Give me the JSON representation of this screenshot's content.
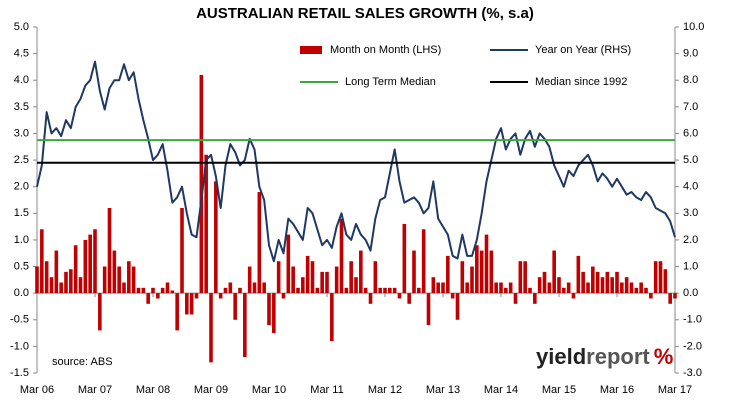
{
  "chart_data": {
    "type": "bar_line",
    "title": "AUSTRALIAN RETAIL SALES GROWTH (%, s.a)",
    "source": "source: ABS",
    "logo": [
      "yield",
      "report",
      "%"
    ],
    "categories": [
      "Mar 06",
      null,
      null,
      null,
      null,
      null,
      null,
      null,
      null,
      null,
      null,
      null,
      "Mar 07",
      null,
      null,
      null,
      null,
      null,
      null,
      null,
      null,
      null,
      null,
      null,
      "Mar 08",
      null,
      null,
      null,
      null,
      null,
      null,
      null,
      null,
      null,
      null,
      null,
      "Mar 09",
      null,
      null,
      null,
      null,
      null,
      null,
      null,
      null,
      null,
      null,
      null,
      "Mar 10",
      null,
      null,
      null,
      null,
      null,
      null,
      null,
      null,
      null,
      null,
      null,
      "Mar 11",
      null,
      null,
      null,
      null,
      null,
      null,
      null,
      null,
      null,
      null,
      null,
      "Mar 12",
      null,
      null,
      null,
      null,
      null,
      null,
      null,
      null,
      null,
      null,
      null,
      "Mar 13",
      null,
      null,
      null,
      null,
      null,
      null,
      null,
      null,
      null,
      null,
      null,
      "Mar 14",
      null,
      null,
      null,
      null,
      null,
      null,
      null,
      null,
      null,
      null,
      null,
      "Mar 15",
      null,
      null,
      null,
      null,
      null,
      null,
      null,
      null,
      null,
      null,
      null,
      "Mar 16",
      null,
      null,
      null,
      null,
      null,
      null,
      null,
      null,
      null,
      null,
      null,
      "Mar 17"
    ],
    "series": [
      {
        "name": "Month on Month (LHS)",
        "kind": "bar",
        "color": "#c00000",
        "values": [
          0.5,
          1.2,
          0.6,
          0.3,
          0.8,
          0.2,
          0.4,
          0.45,
          0.9,
          0.3,
          1.0,
          1.1,
          1.2,
          -0.7,
          0.5,
          1.6,
          0.8,
          0.5,
          0.2,
          0.6,
          0.5,
          0.1,
          0.1,
          -0.2,
          0.1,
          -0.1,
          0.1,
          0.2,
          0.05,
          -0.7,
          1.6,
          -0.4,
          -0.4,
          -0.1,
          4.1,
          2.6,
          -1.3,
          2.1,
          -0.1,
          0.1,
          0.2,
          -0.5,
          0.1,
          -1.2,
          0.5,
          0.2,
          1.9,
          0.2,
          -0.6,
          -0.75,
          0.6,
          -0.1,
          1.1,
          0.5,
          0.1,
          0.3,
          0.7,
          0.6,
          0.1,
          0.4,
          0.4,
          -0.9,
          0.5,
          1.4,
          0.1,
          0.6,
          0.3,
          0.8,
          0.1,
          -0.2,
          0.6,
          0.1,
          0.1,
          0.1,
          0.1,
          -0.1,
          1.3,
          -0.2,
          0.8,
          0.1,
          1.2,
          -0.6,
          0.3,
          0.2,
          0.2,
          0.7,
          -0.1,
          -0.5,
          0.6,
          0.2,
          0.5,
          0.9,
          0.8,
          1.1,
          0.8,
          0.2,
          0.2,
          0.1,
          0.2,
          -0.2,
          0.6,
          0.6,
          0.1,
          -0.2,
          0.3,
          0.4,
          0.2,
          0.8,
          0.3,
          0.1,
          0.2,
          -0.1,
          0.7,
          0.4,
          0.2,
          0.5,
          0.4,
          0.3,
          0.4,
          0.3,
          0.4,
          0.2,
          0.3,
          0.2,
          0.1,
          0.2,
          0.1,
          -0.1,
          0.6,
          0.6,
          0.45,
          -0.2,
          -0.1
        ]
      },
      {
        "name": "Year on Year (RHS)",
        "kind": "line",
        "axis": "y2",
        "color": "#1f3864",
        "values": [
          4.0,
          4.8,
          6.8,
          6.0,
          6.2,
          5.9,
          6.5,
          6.2,
          7.0,
          7.3,
          7.8,
          8.0,
          8.7,
          7.6,
          6.9,
          7.7,
          8.0,
          8.0,
          8.6,
          8.0,
          8.3,
          7.3,
          6.5,
          5.8,
          5.0,
          5.2,
          5.6,
          4.6,
          3.4,
          3.6,
          4.0,
          3.0,
          2.2,
          2.1,
          3.5,
          5.0,
          5.2,
          4.4,
          3.2,
          4.8,
          5.6,
          5.3,
          4.8,
          5.0,
          5.8,
          5.4,
          4.0,
          3.5,
          1.8,
          1.2,
          2.0,
          1.5,
          2.8,
          2.6,
          2.3,
          2.0,
          3.2,
          3.0,
          2.4,
          1.8,
          2.0,
          1.7,
          2.5,
          3.0,
          2.2,
          2.0,
          2.6,
          2.2,
          2.0,
          1.6,
          2.8,
          3.5,
          3.6,
          4.5,
          5.4,
          4.2,
          3.4,
          3.5,
          3.6,
          3.4,
          3.0,
          3.2,
          4.2,
          2.8,
          2.5,
          2.2,
          1.4,
          1.3,
          2.2,
          1.4,
          1.4,
          2.0,
          3.0,
          4.2,
          5.0,
          5.8,
          6.2,
          5.4,
          5.8,
          6.0,
          5.2,
          5.8,
          6.1,
          5.5,
          6.0,
          5.8,
          5.5,
          4.8,
          4.4,
          4.0,
          4.6,
          4.4,
          4.8,
          5.0,
          5.2,
          4.8,
          4.2,
          4.5,
          4.3,
          4.0,
          4.3,
          4.0,
          3.7,
          3.8,
          3.6,
          3.5,
          3.8,
          3.6,
          3.2,
          3.1,
          3.0,
          2.7,
          2.1
        ]
      },
      {
        "name": "Long Term Median",
        "kind": "hline",
        "axis": "y2",
        "color": "#3aa83a",
        "value": 5.75
      },
      {
        "name": "Median since 1992",
        "kind": "hline",
        "axis": "y2",
        "color": "#000000",
        "value": 4.9
      }
    ],
    "ylim": [
      -1.5,
      5.0
    ],
    "yticks": [
      {
        "value": 5,
        "label": "5.0"
      },
      4.5,
      {
        "value": 4,
        "label": "4.0"
      },
      3.5,
      {
        "value": 3,
        "label": "3.0"
      },
      2.5,
      {
        "value": 2,
        "label": "2.0"
      },
      1.5,
      {
        "value": 1,
        "label": "1.0"
      },
      0.5,
      {
        "value": 0,
        "label": "0.0"
      },
      -0.5,
      {
        "value": -1,
        "label": "-1.0"
      },
      -1.5
    ],
    "y2lim": [
      -3.0,
      10.0
    ],
    "y2ticks": [
      {
        "value": 10,
        "label": "10.0"
      },
      {
        "value": 9,
        "label": "9.0"
      },
      {
        "value": 8,
        "label": "8.0"
      },
      {
        "value": 7,
        "label": "7.0"
      },
      {
        "value": 6,
        "label": "6.0"
      },
      {
        "value": 5,
        "label": "5.0"
      },
      {
        "value": 4,
        "label": "4.0"
      },
      {
        "value": 3,
        "label": "3.0"
      },
      {
        "value": 2,
        "label": "2.0"
      },
      {
        "value": 1,
        "label": "1.0"
      },
      {
        "value": 0,
        "label": "0.0"
      },
      {
        "value": -1,
        "label": "-1.0"
      },
      {
        "value": -2,
        "label": "-2.0"
      },
      {
        "value": -3,
        "label": "-3.0"
      }
    ]
  }
}
